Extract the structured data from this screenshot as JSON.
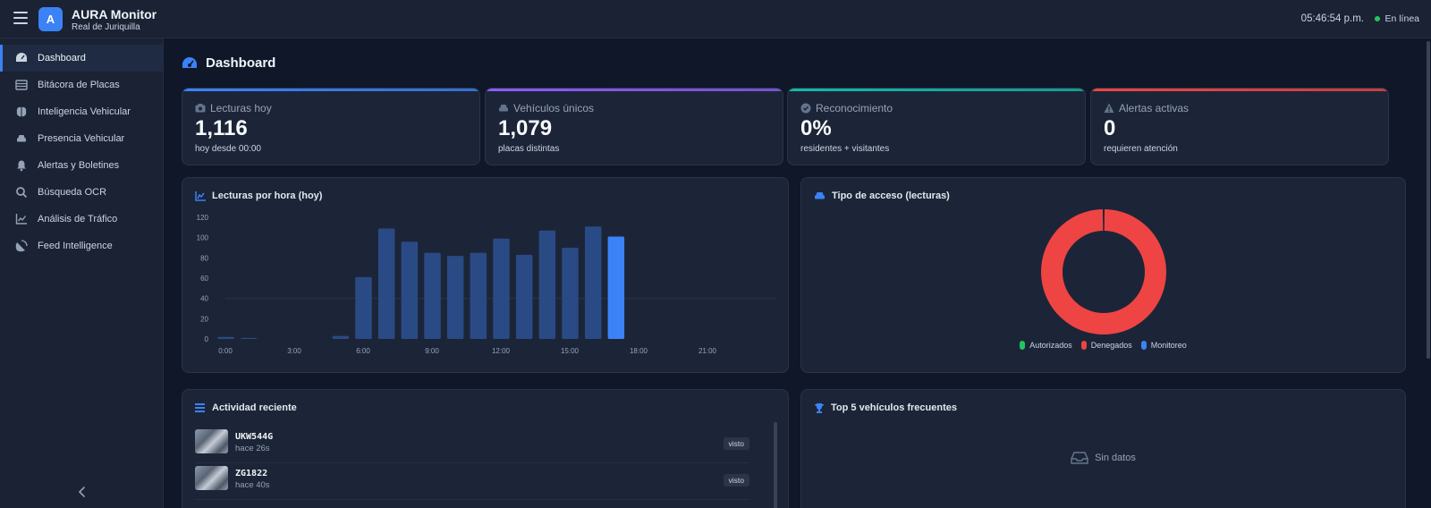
{
  "app": {
    "title": "AURA Monitor",
    "subtitle": "Real de Juriquilla",
    "logo_letter": "A"
  },
  "header": {
    "clock": "05:46:54 p.m.",
    "status": "En línea",
    "status_color": "#22c55e"
  },
  "sidebar": {
    "items": [
      {
        "label": "Dashboard",
        "icon": "gauge-icon",
        "active": true
      },
      {
        "label": "Bitácora de Placas",
        "icon": "list-table-icon"
      },
      {
        "label": "Inteligencia Vehicular",
        "icon": "brain-icon"
      },
      {
        "label": "Presencia Vehicular",
        "icon": "car-icon"
      },
      {
        "label": "Alertas y Boletines",
        "icon": "bell-icon"
      },
      {
        "label": "Búsqueda OCR",
        "icon": "search-icon"
      },
      {
        "label": "Análisis de Tráfico",
        "icon": "chart-line-icon"
      },
      {
        "label": "Feed Intelligence",
        "icon": "satellite-dish-icon"
      }
    ]
  },
  "page": {
    "title": "Dashboard"
  },
  "stats": [
    {
      "label": "Lecturas hoy",
      "value": "1,116",
      "sub": "hoy desde 00:00",
      "accent": "#3b82f6",
      "icon": "camera-icon"
    },
    {
      "label": "Vehículos únicos",
      "value": "1,079",
      "sub": "placas distintas",
      "accent": "#8b5cf6",
      "icon": "car-icon"
    },
    {
      "label": "Reconocimiento",
      "value": "0%",
      "sub": "residentes + visitantes",
      "accent": "#14b8a6",
      "icon": "check-circle-icon"
    },
    {
      "label": "Alertas activas",
      "value": "0",
      "sub": "requieren atención",
      "accent": "#ef4444",
      "icon": "warning-icon"
    }
  ],
  "hourly_card": {
    "title": "Lecturas por hora (hoy)"
  },
  "access_card": {
    "title": "Tipo de acceso (lecturas)"
  },
  "activity_card": {
    "title": "Actividad reciente"
  },
  "top_card": {
    "title": "Top 5 vehículos frecuentes",
    "empty": "Sin datos"
  },
  "activity": [
    {
      "plate": "UKW544G",
      "time": "hace 26s",
      "badge": "visto"
    },
    {
      "plate": "ZG1822",
      "time": "hace 40s",
      "badge": "visto"
    }
  ],
  "chart_data": [
    {
      "type": "bar",
      "title": "Lecturas por hora (hoy)",
      "x": [
        0,
        1,
        2,
        3,
        4,
        5,
        6,
        7,
        8,
        9,
        10,
        11,
        12,
        13,
        14,
        15,
        16,
        17,
        18,
        19,
        20,
        21,
        22,
        23
      ],
      "values": [
        2,
        1,
        0,
        0,
        0,
        3,
        61,
        109,
        96,
        85,
        82,
        85,
        99,
        83,
        107,
        90,
        111,
        101,
        0,
        0,
        0,
        0,
        0,
        0
      ],
      "highlight_index": 17,
      "x_tick_labels": [
        "0:00",
        "3:00",
        "6:00",
        "9:00",
        "12:00",
        "15:00",
        "18:00",
        "21:00"
      ],
      "y_ticks": [
        0,
        20,
        40,
        60,
        80,
        100,
        120
      ],
      "ylim": [
        0,
        120
      ],
      "colors": {
        "bar": "#2a4a86",
        "highlight": "#3b82f6"
      }
    },
    {
      "type": "pie",
      "title": "Tipo de acceso (lecturas)",
      "categories": [
        "Autorizados",
        "Denegados",
        "Monitoreo"
      ],
      "values": [
        0,
        1116,
        0
      ],
      "colors": [
        "#22c55e",
        "#ef4444",
        "#3b82f6"
      ],
      "donut": true,
      "legend_position": "bottom"
    }
  ]
}
